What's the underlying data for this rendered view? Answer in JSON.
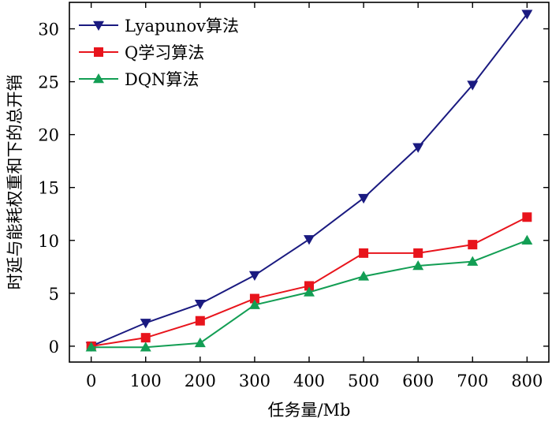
{
  "chart_data": {
    "type": "line",
    "xlabel": "任务量/Mb",
    "ylabel": "时延与能耗权重和下的总开销",
    "x": [
      0,
      100,
      200,
      300,
      400,
      500,
      600,
      700,
      800
    ],
    "xlim": [
      -40,
      840
    ],
    "ylim": [
      -1.5,
      32.5
    ],
    "xticks": [
      0,
      100,
      200,
      300,
      400,
      500,
      600,
      700,
      800
    ],
    "yticks": [
      0,
      5,
      10,
      15,
      20,
      25,
      30
    ],
    "legend_position": "top-left",
    "grid": false,
    "series": [
      {
        "name": "Lyapunov算法",
        "color": "#1a1a80",
        "marker": "triangle-down",
        "values": [
          0.0,
          2.2,
          4.0,
          6.7,
          10.1,
          14.0,
          18.8,
          24.7,
          31.4
        ]
      },
      {
        "name": "Q学习算法",
        "color": "#e8141c",
        "marker": "square",
        "values": [
          0.0,
          0.8,
          2.4,
          4.5,
          5.7,
          8.8,
          8.8,
          9.6,
          12.2
        ]
      },
      {
        "name": "DQN算法",
        "color": "#139e54",
        "marker": "triangle-up",
        "values": [
          -0.1,
          -0.1,
          0.3,
          3.9,
          5.1,
          6.6,
          7.6,
          8.0,
          10.0
        ]
      }
    ]
  }
}
